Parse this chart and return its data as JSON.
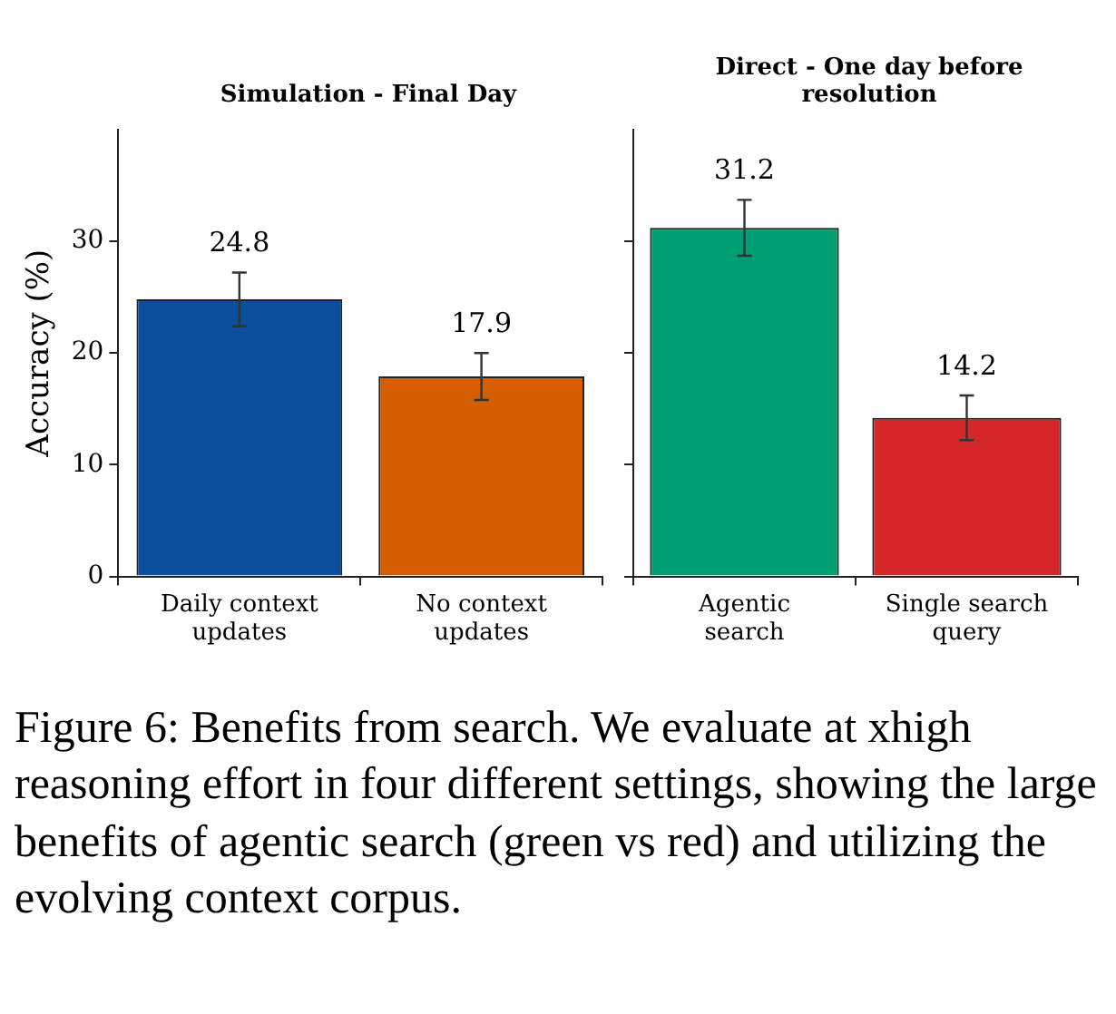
{
  "chart_data": [
    {
      "type": "bar",
      "title": "Simulation - Final Day",
      "ylabel": "Accuracy (%)",
      "categories": [
        "Daily context updates",
        "No context updates"
      ],
      "values": [
        24.8,
        17.9
      ],
      "colors": [
        "#0b4f9c",
        "#d55e00"
      ],
      "errors": [
        2.4,
        2.1
      ],
      "ylim": [
        0,
        40
      ],
      "yticks": [
        0,
        10,
        20,
        30
      ],
      "grid": false,
      "data_labels": true,
      "annotations": [
        "Figure 6: Benefits from search. We evaluate at xhigh reasoning effort in four different settings, showing the large benefits of agentic search (green vs red) and utilizing the evolving context corpus."
      ]
    },
    {
      "type": "bar",
      "title": "Direct - One day before resolution",
      "categories": [
        "Agentic search",
        "Single search query"
      ],
      "values": [
        31.2,
        14.2
      ],
      "colors": [
        "#009e73",
        "#d62728"
      ],
      "errors": [
        2.5,
        2.0
      ],
      "ylim": [
        0,
        40
      ],
      "yticks": [
        0,
        10,
        20,
        30
      ],
      "grid": false,
      "data_labels": true,
      "tick_labels": "x"
    }
  ]
}
